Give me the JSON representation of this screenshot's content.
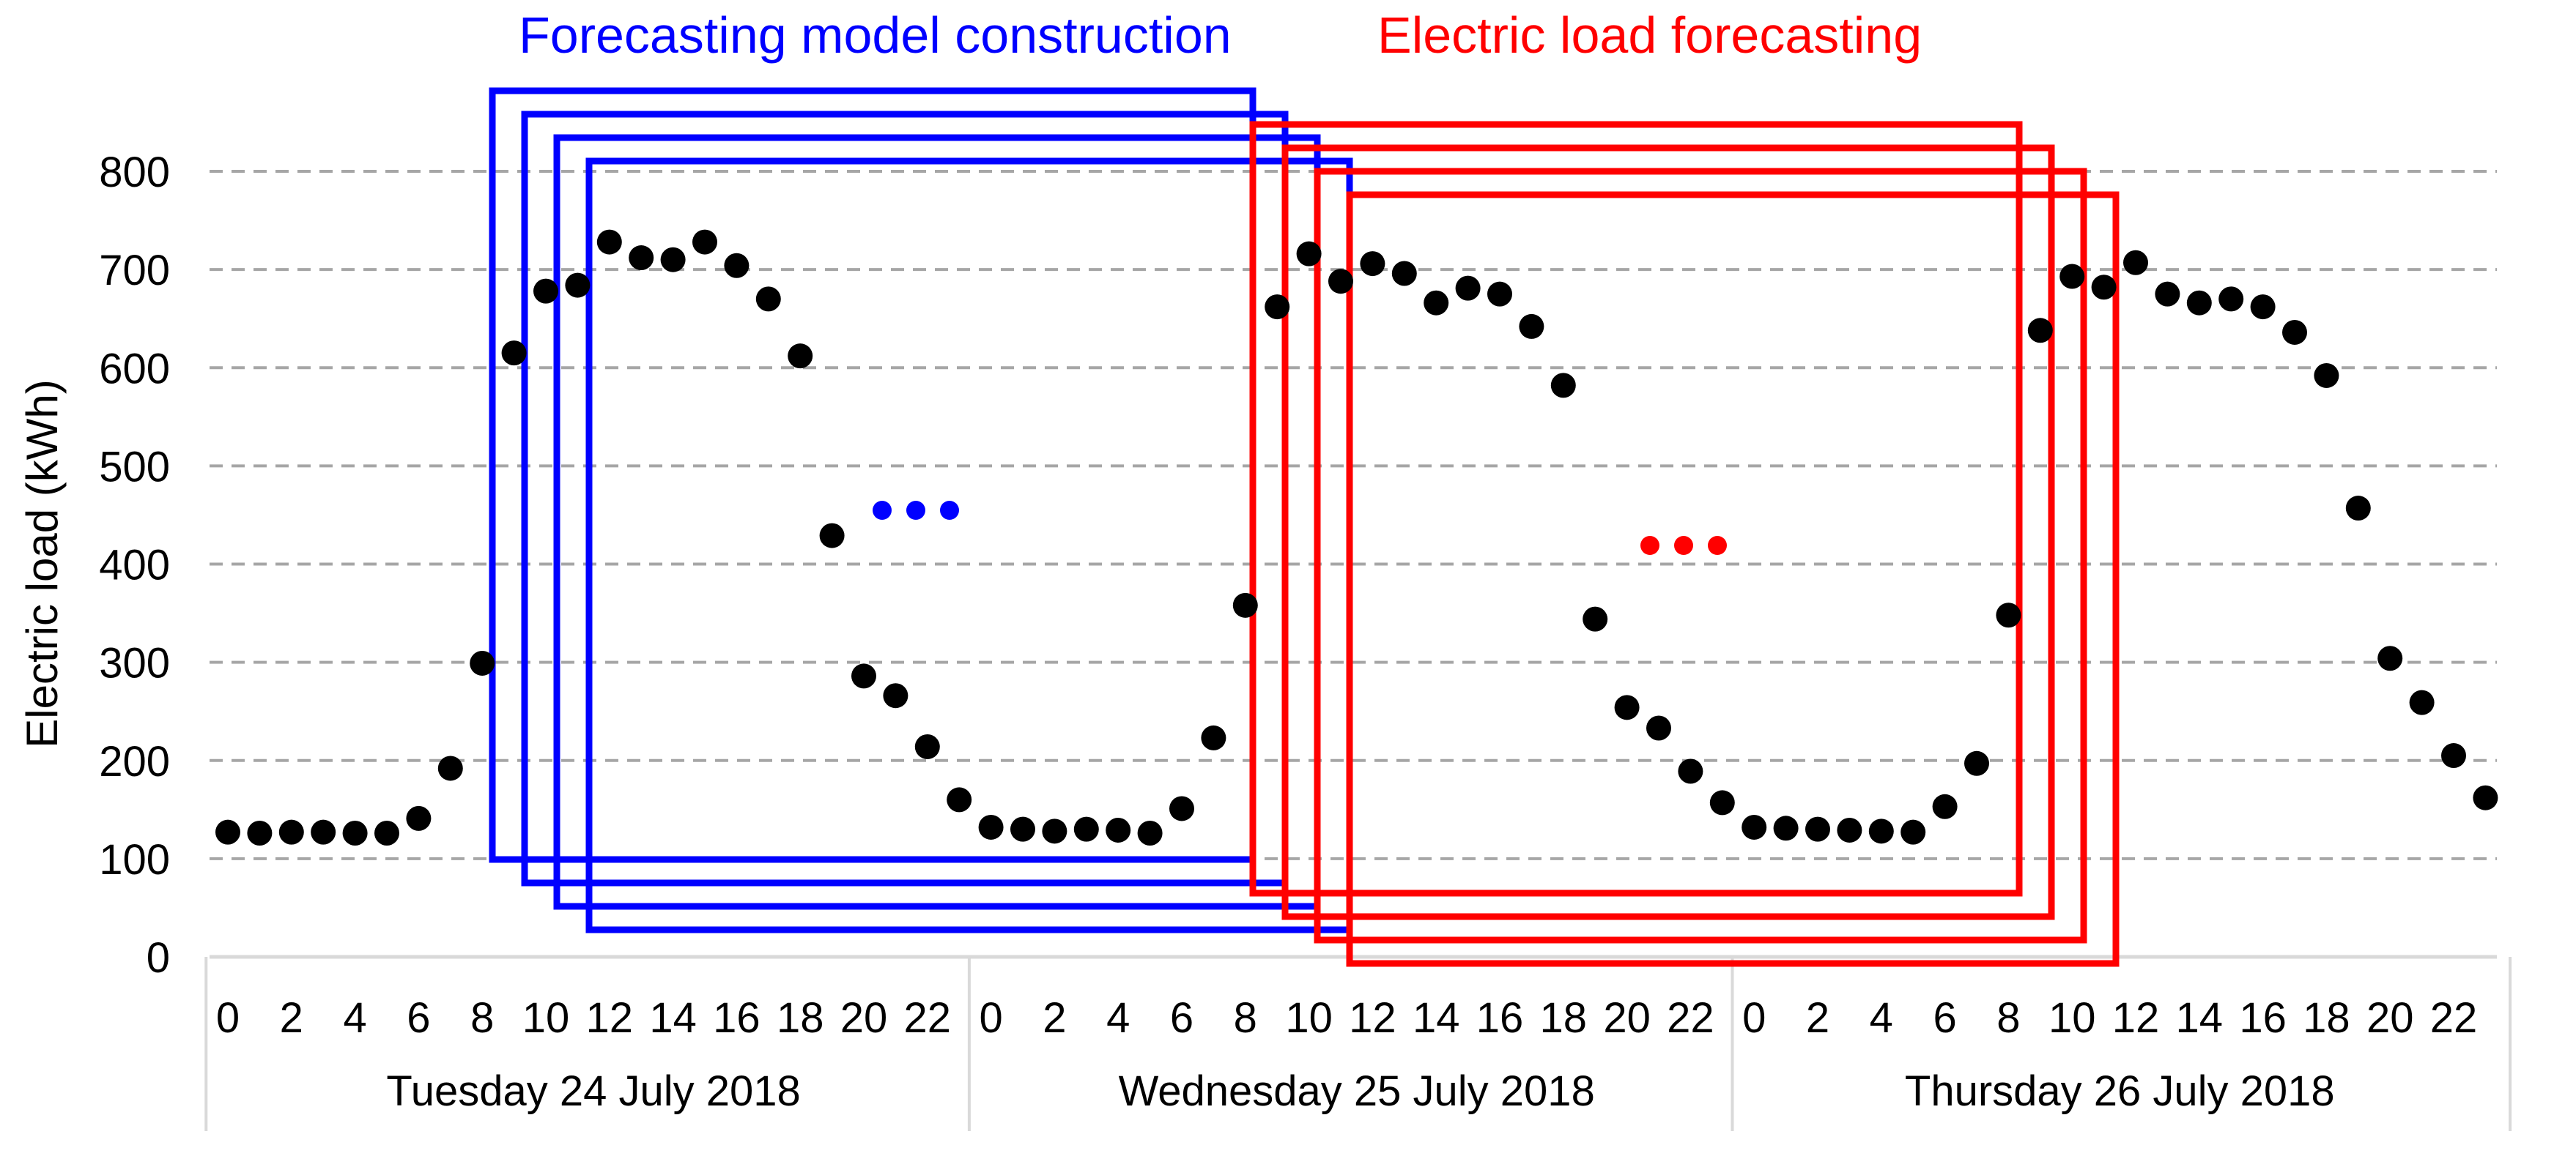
{
  "chart_data": {
    "type": "scatter",
    "title": "",
    "ylabel": "Electric load (kWh)",
    "xlabel": "",
    "ylim": [
      0,
      800
    ],
    "yticks": [
      "0",
      "100",
      "200",
      "300",
      "400",
      "500",
      "600",
      "700",
      "800"
    ],
    "grid": true,
    "days": [
      {
        "label": "Tuesday 24 July 2018"
      },
      {
        "label": "Wednesday 25 July 2018"
      },
      {
        "label": "Thursday 26 July 2018"
      }
    ],
    "hour_ticks": [
      "0",
      "2",
      "4",
      "6",
      "8",
      "10",
      "12",
      "14",
      "16",
      "18",
      "20",
      "22"
    ],
    "series": [
      {
        "name": "Electric load",
        "color": "#000000",
        "values": [
          127,
          126,
          127,
          127,
          126,
          126,
          141,
          192,
          299,
          615,
          678,
          684,
          728,
          712,
          710,
          728,
          704,
          670,
          612,
          429,
          286,
          266,
          214,
          160,
          132,
          130,
          128,
          130,
          129,
          126,
          151,
          223,
          358,
          662,
          716,
          688,
          706,
          696,
          666,
          681,
          675,
          642,
          582,
          344,
          254,
          233,
          189,
          157,
          132,
          131,
          130,
          129,
          128,
          127,
          153,
          197,
          348,
          638,
          693,
          682,
          707,
          675,
          666,
          670,
          662,
          636,
          592,
          457,
          304,
          259,
          205,
          162
        ]
      }
    ],
    "annotations": {
      "construction": {
        "label": "Forecasting model construction",
        "color": "#0000ff"
      },
      "forecasting": {
        "label": "Electric load forecasting",
        "color": "#ff0000"
      }
    }
  }
}
